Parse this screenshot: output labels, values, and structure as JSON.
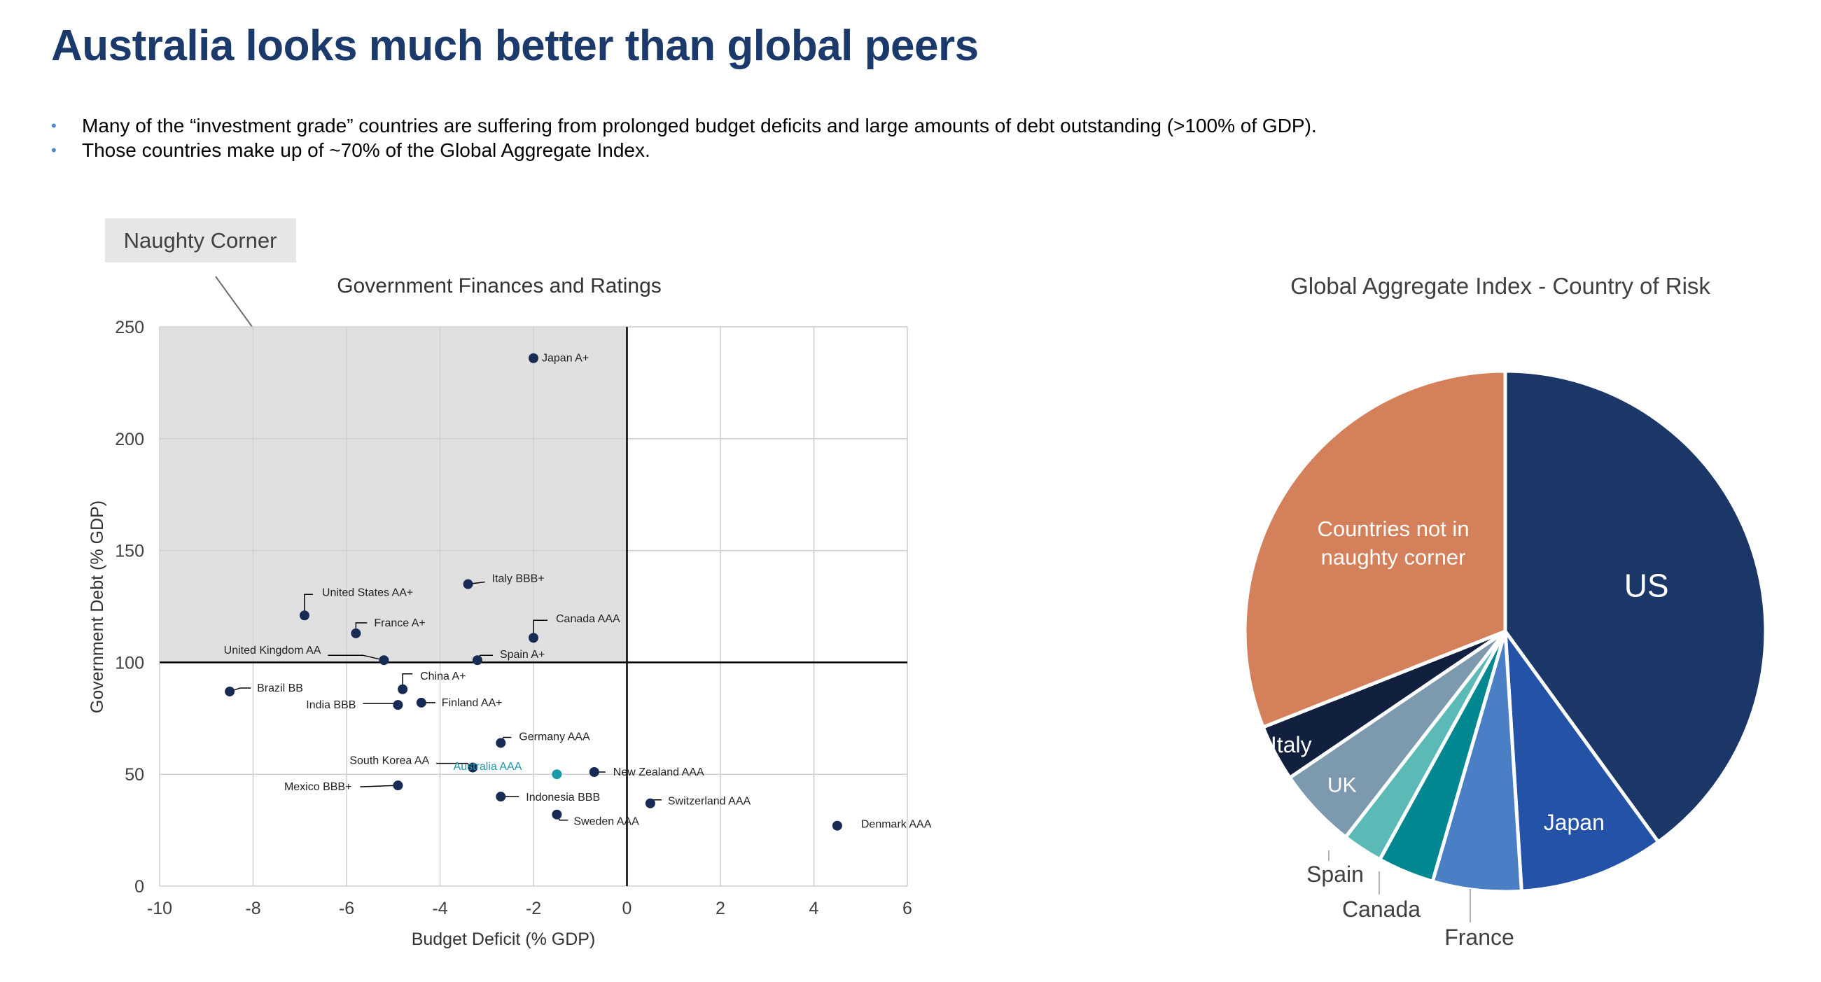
{
  "title": "Australia looks much better than global peers",
  "bullets": [
    "Many of the “investment grade” countries are suffering from prolonged budget deficits and large amounts of debt outstanding (>100% of GDP).",
    "Those countries make up of ~70% of the Global Aggregate Index."
  ],
  "callout": {
    "label": "Naughty Corner"
  },
  "colors": {
    "navy": "#1b3a6b",
    "point": "#172b55",
    "australia": "#1a9aa6",
    "shade": "#e0e0e0",
    "bullet": "#4a89c8"
  },
  "chart_data": [
    {
      "type": "scatter",
      "title": "Government Finances and Ratings",
      "xlabel": "Budget Deficit (% GDP)",
      "ylabel": "Government Debt (% GDP)",
      "xlim": [
        -10,
        6
      ],
      "ylim": [
        0,
        250
      ],
      "xticks": [
        -10,
        -8,
        -6,
        -4,
        -2,
        0,
        2,
        4,
        6
      ],
      "yticks": [
        0,
        50,
        100,
        150,
        200,
        250
      ],
      "grid": true,
      "shaded_quadrant": "top-left",
      "reference_lines": {
        "x": 0,
        "y": 100
      },
      "points": [
        {
          "label": "Japan A+",
          "x": -2.0,
          "y": 236
        },
        {
          "label": "Italy BBB+",
          "x": -3.4,
          "y": 135
        },
        {
          "label": "United States AA+",
          "x": -6.9,
          "y": 121
        },
        {
          "label": "Canada AAA",
          "x": -2.0,
          "y": 111
        },
        {
          "label": "France A+",
          "x": -5.8,
          "y": 113
        },
        {
          "label": "United Kingdom AA",
          "x": -5.2,
          "y": 101
        },
        {
          "label": "Spain A+",
          "x": -3.2,
          "y": 101
        },
        {
          "label": "China A+",
          "x": -4.8,
          "y": 88
        },
        {
          "label": "Brazil BB",
          "x": -8.5,
          "y": 87
        },
        {
          "label": "Finland AA+",
          "x": -4.4,
          "y": 82
        },
        {
          "label": "India BBB",
          "x": -4.9,
          "y": 81
        },
        {
          "label": "Germany AAA",
          "x": -2.7,
          "y": 64
        },
        {
          "label": "South Korea AA",
          "x": -3.3,
          "y": 53
        },
        {
          "label": "Australia AAA",
          "x": -1.5,
          "y": 50,
          "highlight": true
        },
        {
          "label": "New Zealand AAA",
          "x": -0.7,
          "y": 51
        },
        {
          "label": "Mexico BBB+",
          "x": -4.9,
          "y": 45
        },
        {
          "label": "Indonesia BBB",
          "x": -2.7,
          "y": 40
        },
        {
          "label": "Switzerland AAA",
          "x": 0.5,
          "y": 37
        },
        {
          "label": "Sweden AAA",
          "x": -1.5,
          "y": 32
        },
        {
          "label": "Denmark AAA",
          "x": 4.5,
          "y": 27
        }
      ]
    },
    {
      "type": "pie",
      "title": "Global Aggregate Index -  Country of Risk",
      "slices": [
        {
          "label": "US",
          "value": 40.0,
          "color": "#1b3768"
        },
        {
          "label": "Japan",
          "value": 9.0,
          "color": "#2352a6"
        },
        {
          "label": "France",
          "value": 5.5,
          "color": "#4a7fc6"
        },
        {
          "label": "Canada",
          "value": 3.5,
          "color": "#008790"
        },
        {
          "label": "Spain",
          "value": 2.5,
          "color": "#5bbab6"
        },
        {
          "label": "UK",
          "value": 5.0,
          "color": "#7d99ad"
        },
        {
          "label": "Italy",
          "value": 3.5,
          "color": "#12203f"
        },
        {
          "label": "Countries not in naughty corner",
          "value": 31.0,
          "color": "#d4805a"
        }
      ]
    }
  ]
}
